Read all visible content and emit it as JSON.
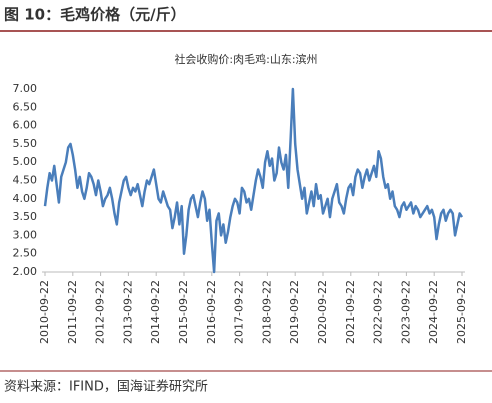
{
  "chart_data": {
    "type": "line",
    "title": "图 10：毛鸡价格（元/斤）",
    "subtitle": "社会收购价:肉毛鸡:山东:滨州",
    "source": "资料来源：IFIND，国海证券研究所",
    "categories": [
      "2010-09-22",
      null,
      null,
      null,
      null,
      null,
      null,
      null,
      null,
      null,
      null,
      null,
      "2011-09-22",
      null,
      null,
      null,
      null,
      null,
      null,
      null,
      null,
      null,
      null,
      null,
      "2012-09-22",
      null,
      null,
      null,
      null,
      null,
      null,
      null,
      null,
      null,
      null,
      null,
      "2013-09-22",
      null,
      null,
      null,
      null,
      null,
      null,
      null,
      null,
      null,
      null,
      null,
      "2014-09-22",
      null,
      null,
      null,
      null,
      null,
      null,
      null,
      null,
      null,
      null,
      null,
      "2015-09-22",
      null,
      null,
      null,
      null,
      null,
      null,
      null,
      null,
      null,
      null,
      null,
      "2016-09-22",
      null,
      null,
      null,
      null,
      null,
      null,
      null,
      null,
      null,
      null,
      null,
      "2017-09-22",
      null,
      null,
      null,
      null,
      null,
      null,
      null,
      null,
      null,
      null,
      null,
      "2018-09-22",
      null,
      null,
      null,
      null,
      null,
      null,
      null,
      null,
      null,
      null,
      null,
      "2019-09-22",
      null,
      null,
      null,
      null,
      null,
      null,
      null,
      null,
      null,
      null,
      null,
      "2020-09-22",
      null,
      null,
      null,
      null,
      null,
      null,
      null,
      null,
      null,
      null,
      null,
      "2021-09-22",
      null,
      null,
      null,
      null,
      null,
      null,
      null,
      null,
      null,
      null,
      null,
      "2022-09-22",
      null,
      null,
      null,
      null,
      null,
      null,
      null,
      null,
      null,
      null,
      null,
      "2023-09-22",
      null,
      null,
      null,
      null,
      null,
      null,
      null,
      null,
      null,
      null,
      null,
      "2024-09-22",
      null,
      null,
      null,
      null,
      null,
      null,
      null,
      null,
      null,
      null,
      null,
      "2025-09-22"
    ],
    "series": [
      {
        "name": "社会收购价:肉毛鸡:山东:滨州",
        "color": "#4a7ebb",
        "values": [
          3.8,
          4.3,
          4.7,
          4.5,
          4.9,
          4.4,
          3.9,
          4.6,
          4.8,
          5.0,
          5.4,
          5.5,
          5.2,
          4.8,
          4.3,
          4.6,
          4.2,
          4.0,
          4.3,
          4.7,
          4.6,
          4.4,
          4.1,
          4.5,
          4.2,
          3.8,
          4.0,
          4.1,
          4.3,
          4.0,
          3.6,
          3.3,
          3.9,
          4.2,
          4.5,
          4.6,
          4.3,
          4.1,
          4.3,
          4.2,
          4.4,
          4.1,
          3.8,
          4.2,
          4.5,
          4.4,
          4.6,
          4.8,
          4.4,
          4.0,
          3.9,
          4.2,
          4.0,
          3.8,
          3.7,
          3.2,
          3.5,
          3.9,
          3.3,
          3.8,
          2.5,
          3.0,
          3.7,
          4.0,
          4.1,
          3.8,
          3.5,
          3.9,
          4.2,
          4.0,
          3.4,
          3.7,
          2.8,
          2.0,
          3.4,
          3.6,
          3.0,
          3.3,
          2.8,
          3.1,
          3.5,
          3.8,
          4.0,
          3.9,
          3.6,
          4.3,
          4.2,
          3.9,
          4.0,
          3.7,
          4.1,
          4.5,
          4.8,
          4.6,
          4.3,
          5.0,
          5.3,
          4.9,
          5.1,
          4.5,
          4.7,
          5.4,
          5.0,
          4.8,
          5.2,
          4.3,
          5.6,
          7.0,
          5.5,
          4.8,
          4.4,
          4.0,
          4.3,
          3.6,
          3.9,
          4.2,
          3.8,
          4.4,
          4.0,
          4.1,
          3.6,
          3.8,
          4.0,
          3.5,
          4.0,
          4.2,
          4.4,
          3.9,
          3.8,
          3.6,
          4.0,
          4.3,
          4.4,
          4.1,
          4.6,
          4.8,
          4.7,
          4.3,
          4.6,
          4.8,
          4.5,
          4.7,
          4.9,
          4.6,
          5.3,
          5.1,
          4.6,
          4.3,
          4.4,
          4.0,
          4.2,
          3.8,
          3.7,
          3.5,
          3.8,
          3.9,
          3.7,
          3.8,
          3.9,
          3.6,
          3.8,
          3.7,
          3.5,
          3.6,
          3.7,
          3.8,
          3.6,
          3.7,
          3.5,
          2.9,
          3.3,
          3.6,
          3.7,
          3.4,
          3.6,
          3.7,
          3.6,
          3.0,
          3.3,
          3.6,
          3.5
        ]
      }
    ],
    "ylim": [
      2,
      7
    ],
    "yticks": [
      {
        "value": 2,
        "label": "2.00"
      },
      {
        "value": 2.5,
        "label": "2.50"
      },
      {
        "value": 3,
        "label": "3.00"
      },
      {
        "value": 3.5,
        "label": "3.50"
      },
      {
        "value": 4,
        "label": "4.00"
      },
      {
        "value": 4.5,
        "label": "4.50"
      },
      {
        "value": 5,
        "label": "5.00"
      },
      {
        "value": 5.5,
        "label": "5.50"
      },
      {
        "value": 6,
        "label": "6.00"
      },
      {
        "value": 6.5,
        "label": "6.50"
      },
      {
        "value": 7,
        "label": "7.00"
      }
    ],
    "grid": false
  }
}
